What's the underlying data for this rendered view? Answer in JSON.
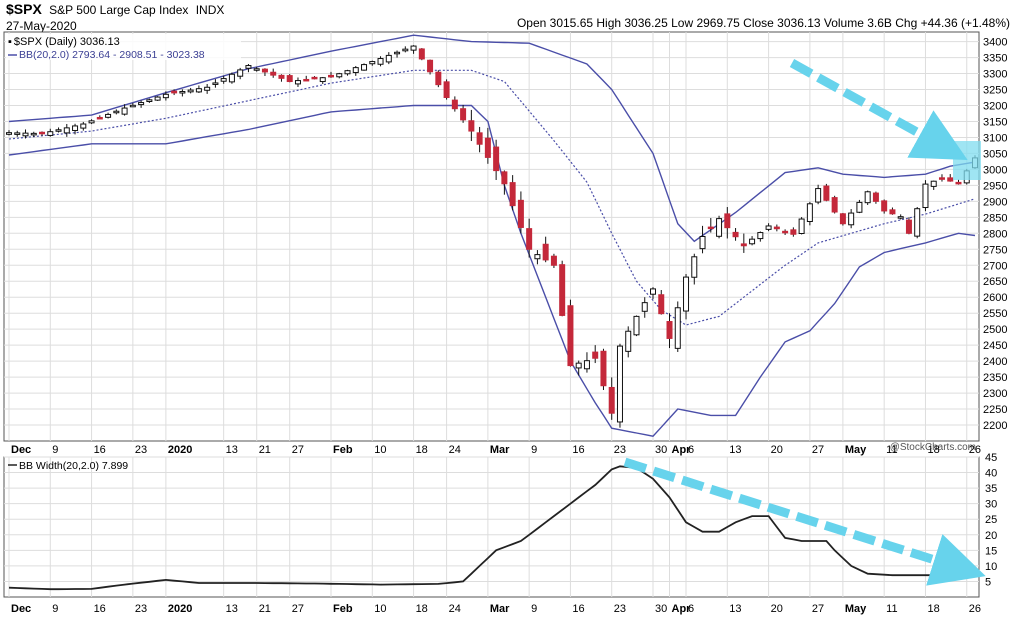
{
  "header": {
    "symbol": "$SPX",
    "name": "S&P 500 Large Cap Index",
    "exchange": "INDX",
    "date": "27-May-2020",
    "ohlc_text": "Open 3015.65  High 3036.25  Low 2969.75  Close 3036.13  Volume 3.6B  Chg +44.36 (+1.48%)",
    "legend_price": "$SPX (Daily) 3036.13",
    "legend_bb": "BB(20,2.0) 2793.64 - 2908.51 - 3023.38",
    "legend_width": "BB Width(20,2.0) 7.899",
    "watermark": "@StockCharts.com"
  },
  "colors": {
    "up_body": "#ffffff",
    "down_body": "#c4283a",
    "band": "#4a4ea8",
    "width_line": "#222222",
    "arrow": "#67d3ec",
    "highlight": "#7fdcef",
    "grid": "#dddddd"
  },
  "chart_data": [
    {
      "type": "candlestick",
      "title": "$SPX (Daily)",
      "ylim": [
        2150,
        3430
      ],
      "y_ticks": [
        2200,
        2250,
        2300,
        2350,
        2400,
        2450,
        2500,
        2550,
        2600,
        2650,
        2700,
        2750,
        2800,
        2850,
        2900,
        2950,
        3000,
        3050,
        3100,
        3150,
        3200,
        3250,
        3300,
        3350,
        3400
      ],
      "x_labels": [
        {
          "i": 0,
          "label": "Dec",
          "bold": true
        },
        {
          "i": 5,
          "label": "9",
          "bold": false
        },
        {
          "i": 10,
          "label": "16",
          "bold": false
        },
        {
          "i": 15,
          "label": "23",
          "bold": false
        },
        {
          "i": 19,
          "label": "2020",
          "bold": true
        },
        {
          "i": 26,
          "label": "13",
          "bold": false
        },
        {
          "i": 30,
          "label": "21",
          "bold": false
        },
        {
          "i": 34,
          "label": "27",
          "bold": false
        },
        {
          "i": 39,
          "label": "Feb",
          "bold": true
        },
        {
          "i": 44,
          "label": "10",
          "bold": false
        },
        {
          "i": 49,
          "label": "18",
          "bold": false
        },
        {
          "i": 53,
          "label": "24",
          "bold": false
        },
        {
          "i": 58,
          "label": "Mar",
          "bold": true
        },
        {
          "i": 63,
          "label": "9",
          "bold": false
        },
        {
          "i": 68,
          "label": "16",
          "bold": false
        },
        {
          "i": 73,
          "label": "23",
          "bold": false
        },
        {
          "i": 78,
          "label": "30",
          "bold": false
        },
        {
          "i": 80,
          "label": "Apr",
          "bold": true
        },
        {
          "i": 82,
          "label": "6",
          "bold": false
        },
        {
          "i": 87,
          "label": "13",
          "bold": false
        },
        {
          "i": 92,
          "label": "20",
          "bold": false
        },
        {
          "i": 97,
          "label": "27",
          "bold": false
        },
        {
          "i": 101,
          "label": "May",
          "bold": true
        },
        {
          "i": 106,
          "label": "11",
          "bold": false
        },
        {
          "i": 111,
          "label": "18",
          "bold": false
        },
        {
          "i": 116,
          "label": "26",
          "bold": false
        }
      ],
      "close_points": [
        [
          0,
          3115
        ],
        [
          4,
          3112
        ],
        [
          9,
          3142
        ],
        [
          14,
          3192
        ],
        [
          19,
          3235
        ],
        [
          24,
          3257
        ],
        [
          29,
          3325
        ],
        [
          34,
          3275
        ],
        [
          39,
          3290
        ],
        [
          45,
          3347
        ],
        [
          49,
          3386
        ],
        [
          53,
          3225
        ],
        [
          56,
          3120
        ],
        [
          60,
          2955
        ],
        [
          63,
          2750
        ],
        [
          66,
          2700
        ],
        [
          68,
          2386
        ],
        [
          71,
          2409
        ],
        [
          73,
          2237
        ],
        [
          74,
          2447
        ],
        [
          76,
          2540
        ],
        [
          78,
          2626
        ],
        [
          80,
          2471
        ],
        [
          82,
          2663
        ],
        [
          84,
          2790
        ],
        [
          86,
          2846
        ],
        [
          89,
          2761
        ],
        [
          92,
          2823
        ],
        [
          95,
          2797
        ],
        [
          98,
          2940
        ],
        [
          101,
          2830
        ],
        [
          104,
          2930
        ],
        [
          106,
          2870
        ],
        [
          108,
          2852
        ],
        [
          109,
          2800
        ],
        [
          111,
          2954
        ],
        [
          113,
          2972
        ],
        [
          115,
          2955
        ],
        [
          117,
          3036
        ]
      ],
      "bb_upper_points": [
        [
          0,
          3150
        ],
        [
          10,
          3170
        ],
        [
          19,
          3240
        ],
        [
          29,
          3315
        ],
        [
          39,
          3370
        ],
        [
          49,
          3420
        ],
        [
          56,
          3400
        ],
        [
          63,
          3395
        ],
        [
          70,
          3330
        ],
        [
          73,
          3250
        ],
        [
          78,
          3050
        ],
        [
          81,
          2830
        ],
        [
          83,
          2775
        ],
        [
          88,
          2865
        ],
        [
          94,
          2990
        ],
        [
          98,
          3005
        ],
        [
          101,
          2985
        ],
        [
          106,
          2975
        ],
        [
          111,
          2985
        ],
        [
          114,
          3010
        ],
        [
          117,
          3023
        ]
      ],
      "bb_middle_points": [
        [
          0,
          3095
        ],
        [
          10,
          3120
        ],
        [
          19,
          3160
        ],
        [
          29,
          3215
        ],
        [
          39,
          3270
        ],
        [
          49,
          3310
        ],
        [
          56,
          3310
        ],
        [
          60,
          3275
        ],
        [
          66,
          3090
        ],
        [
          70,
          2960
        ],
        [
          73,
          2800
        ],
        [
          76,
          2650
        ],
        [
          79,
          2560
        ],
        [
          82,
          2513
        ],
        [
          86,
          2540
        ],
        [
          90,
          2620
        ],
        [
          94,
          2700
        ],
        [
          98,
          2770
        ],
        [
          102,
          2800
        ],
        [
          106,
          2830
        ],
        [
          111,
          2860
        ],
        [
          117,
          2908
        ]
      ],
      "bb_lower_points": [
        [
          0,
          3045
        ],
        [
          10,
          3080
        ],
        [
          19,
          3080
        ],
        [
          29,
          3125
        ],
        [
          39,
          3180
        ],
        [
          49,
          3200
        ],
        [
          56,
          3200
        ],
        [
          58,
          3150
        ],
        [
          60,
          2950
        ],
        [
          62,
          2800
        ],
        [
          65,
          2600
        ],
        [
          68,
          2400
        ],
        [
          71,
          2270
        ],
        [
          73,
          2190
        ],
        [
          78,
          2165
        ],
        [
          81,
          2250
        ],
        [
          85,
          2230
        ],
        [
          88,
          2230
        ],
        [
          91,
          2350
        ],
        [
          94,
          2460
        ],
        [
          97,
          2495
        ],
        [
          100,
          2580
        ],
        [
          103,
          2695
        ],
        [
          106,
          2740
        ],
        [
          111,
          2770
        ],
        [
          115,
          2800
        ],
        [
          117,
          2793
        ]
      ]
    },
    {
      "type": "line",
      "title": "BB Width(20,2.0)",
      "ylim": [
        0,
        45
      ],
      "y_ticks": [
        5,
        10,
        15,
        20,
        25,
        30,
        35,
        40,
        45
      ],
      "points": [
        [
          0,
          3
        ],
        [
          5,
          2.5
        ],
        [
          10,
          2.6
        ],
        [
          14,
          4
        ],
        [
          19,
          5.5
        ],
        [
          23,
          4.5
        ],
        [
          30,
          4.5
        ],
        [
          38,
          4.3
        ],
        [
          45,
          4
        ],
        [
          52,
          4.2
        ],
        [
          55,
          5
        ],
        [
          57,
          10
        ],
        [
          59,
          15
        ],
        [
          62,
          18
        ],
        [
          65,
          24
        ],
        [
          68,
          30
        ],
        [
          71,
          36
        ],
        [
          73,
          41
        ],
        [
          74,
          42
        ],
        [
          76,
          41.5
        ],
        [
          78,
          38
        ],
        [
          80,
          32
        ],
        [
          82,
          24
        ],
        [
          84,
          21
        ],
        [
          86,
          21
        ],
        [
          88,
          24
        ],
        [
          90,
          26
        ],
        [
          92,
          26
        ],
        [
          94,
          19
        ],
        [
          96,
          18
        ],
        [
          99,
          18
        ],
        [
          100,
          15
        ],
        [
          102,
          10
        ],
        [
          104,
          7.5
        ],
        [
          107,
          7
        ],
        [
          111,
          7
        ],
        [
          114,
          7
        ],
        [
          117,
          7.899
        ]
      ]
    }
  ]
}
